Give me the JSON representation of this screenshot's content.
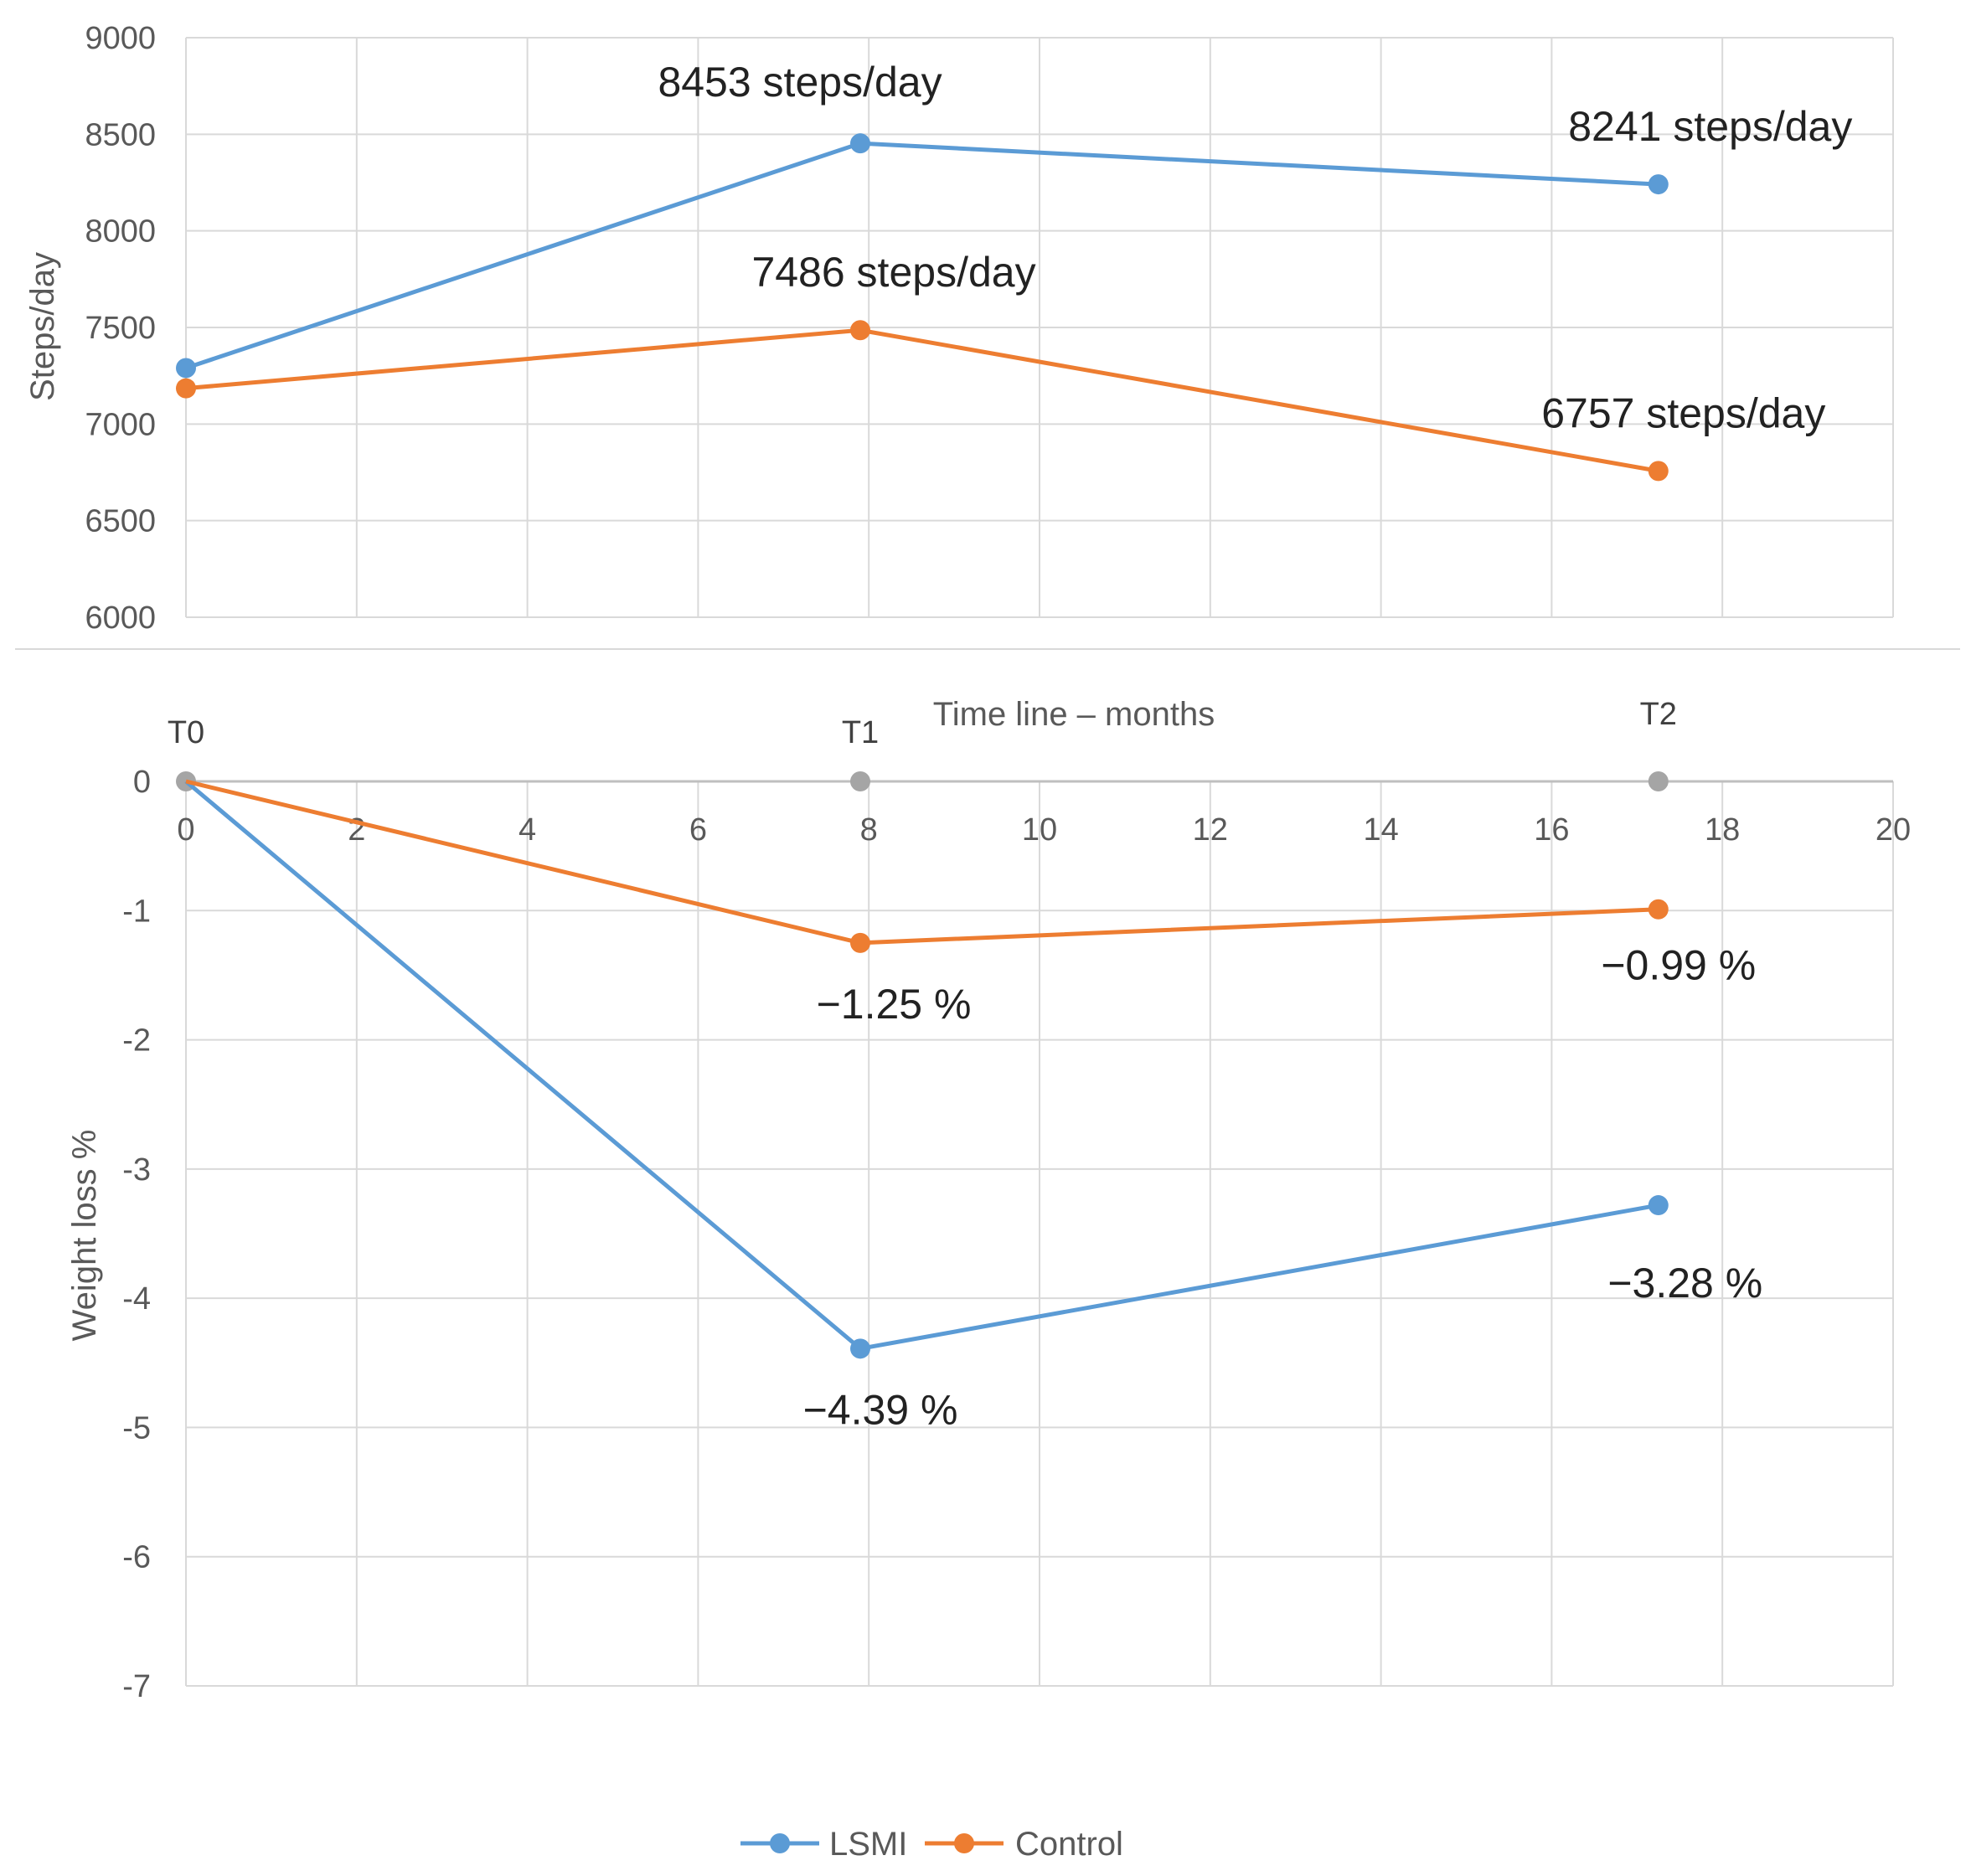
{
  "colors": {
    "lsmi": "#5b9bd5",
    "control": "#ed7d31",
    "timepoint": "#a5a5a5",
    "grid": "#d9d9d9"
  },
  "chart_data": [
    {
      "type": "line",
      "ylabel": "Steps/day",
      "ylim": [
        6000,
        9000
      ],
      "yticks": [
        "9000",
        "8500",
        "8000",
        "7500",
        "7000",
        "6500",
        "6000"
      ],
      "xlim": [
        0,
        20
      ],
      "series": [
        {
          "name": "LSMI",
          "x": [
            0,
            7.9,
            17.25
          ],
          "y": [
            7290,
            8453,
            8241
          ],
          "labels": [
            "",
            "8453 steps/day",
            "8241 steps/day"
          ]
        },
        {
          "name": "Control",
          "x": [
            0,
            7.9,
            17.25
          ],
          "y": [
            7185,
            7486,
            6757
          ],
          "labels": [
            "",
            "7486 steps/day",
            "6757 steps/day"
          ]
        }
      ]
    },
    {
      "type": "line",
      "xlabel": "Time line – months",
      "ylabel": "Weight loss %",
      "xlim": [
        0,
        20
      ],
      "ylim": [
        -7,
        0
      ],
      "xticks": [
        "0",
        "2",
        "4",
        "6",
        "8",
        "10",
        "12",
        "14",
        "16",
        "18",
        "20"
      ],
      "yticks": [
        "0",
        "-1",
        "-2",
        "-3",
        "-4",
        "-5",
        "-6",
        "-7"
      ],
      "timepoints": [
        {
          "label": "T0",
          "x": 0
        },
        {
          "label": "T1",
          "x": 7.9
        },
        {
          "label": "T2",
          "x": 17.25
        }
      ],
      "series": [
        {
          "name": "LSMI",
          "x": [
            0,
            7.9,
            17.25
          ],
          "y": [
            0,
            -4.39,
            -3.28
          ],
          "labels": [
            "",
            "−4.39 %",
            "−3.28 %"
          ]
        },
        {
          "name": "Control",
          "x": [
            0,
            7.9,
            17.25
          ],
          "y": [
            0,
            -1.25,
            -0.99
          ],
          "labels": [
            "",
            "−1.25 %",
            "−0.99 %"
          ]
        }
      ],
      "legend": {
        "position": "bottom",
        "entries": [
          "LSMI",
          "Control"
        ]
      }
    }
  ]
}
